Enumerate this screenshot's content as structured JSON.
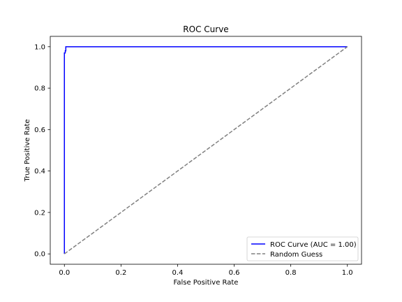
{
  "chart_data": {
    "type": "line",
    "title": "ROC Curve",
    "xlabel": "False Positive Rate",
    "ylabel": "True Positive Rate",
    "xlim": [
      -0.05,
      1.05
    ],
    "ylim": [
      -0.05,
      1.05
    ],
    "xticks": [
      0.0,
      0.2,
      0.4,
      0.6,
      0.8,
      1.0
    ],
    "xtick_labels": [
      "0.0",
      "0.2",
      "0.4",
      "0.6",
      "0.8",
      "1.0"
    ],
    "yticks": [
      0.0,
      0.2,
      0.4,
      0.6,
      0.8,
      1.0
    ],
    "ytick_labels": [
      "0.0",
      "0.2",
      "0.4",
      "0.6",
      "0.8",
      "1.0"
    ],
    "grid": false,
    "legend_position": "lower right",
    "series": [
      {
        "name": "ROC Curve (AUC = 1.00)",
        "color": "#0000ff",
        "style": "solid",
        "x": [
          0.0,
          0.0,
          0.003,
          0.003,
          0.005,
          0.005,
          1.0
        ],
        "y": [
          0.0,
          0.97,
          0.97,
          0.98,
          0.98,
          1.0,
          1.0
        ]
      },
      {
        "name": "Random Guess",
        "color": "#808080",
        "style": "dashed",
        "x": [
          0.0,
          1.0
        ],
        "y": [
          0.0,
          1.0
        ]
      }
    ]
  }
}
